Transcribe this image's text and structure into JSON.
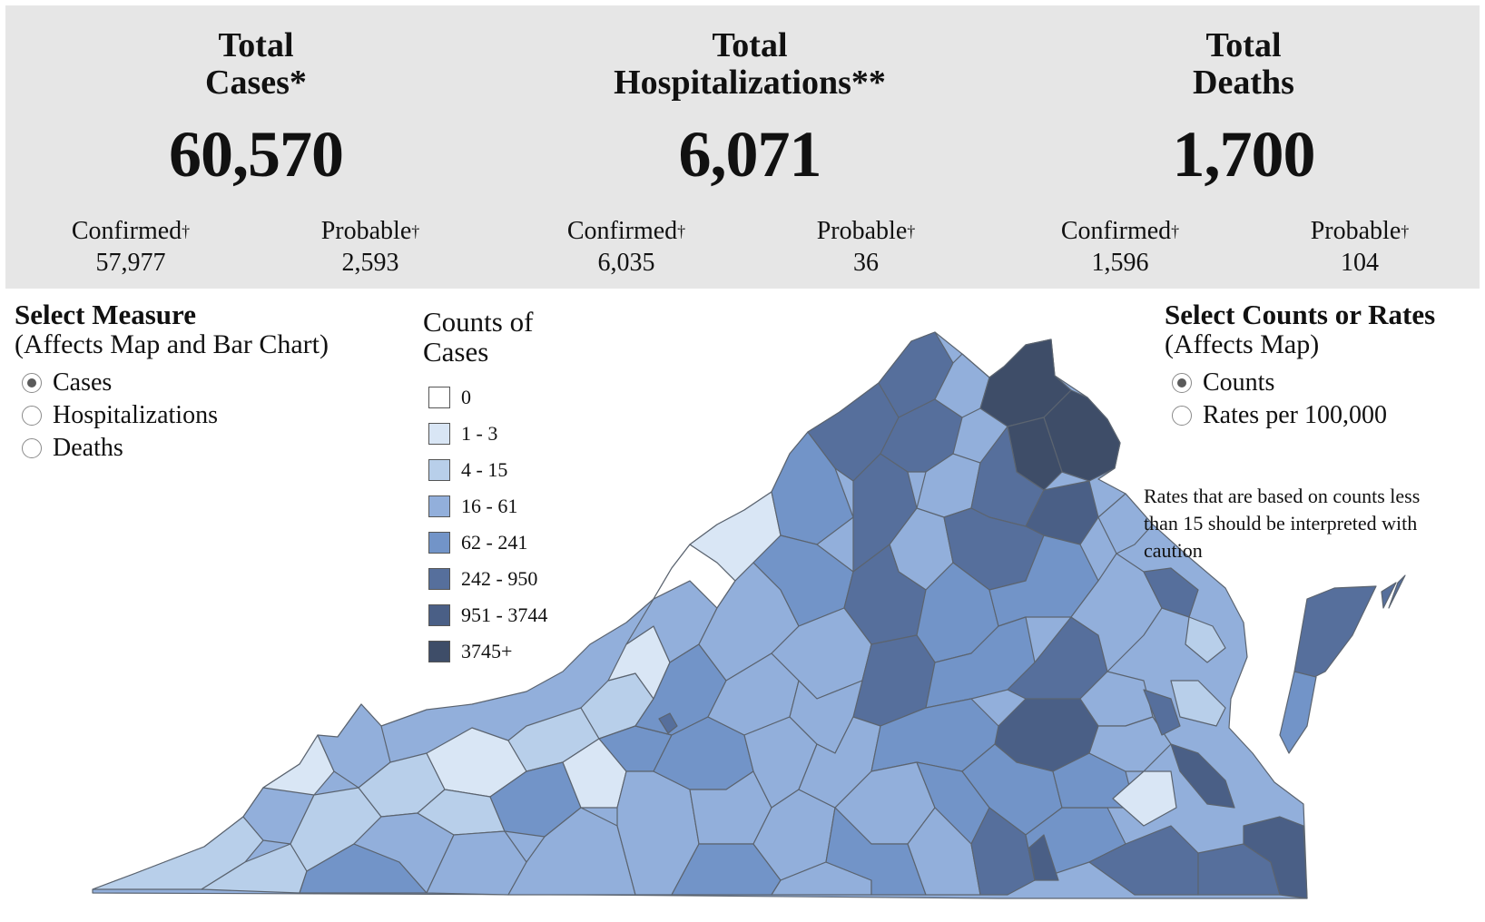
{
  "summary": {
    "cases": {
      "title_1": "Total",
      "title_2": "Cases*",
      "total": "60,570",
      "confirmed_label": "Confirmed",
      "confirmed": "57,977",
      "probable_label": "Probable",
      "probable": "2,593"
    },
    "hospitalizations": {
      "title_1": "Total",
      "title_2": "Hospitalizations**",
      "total": "6,071",
      "confirmed_label": "Confirmed",
      "confirmed": "6,035",
      "probable_label": "Probable",
      "probable": "36"
    },
    "deaths": {
      "title_1": "Total",
      "title_2": "Deaths",
      "total": "1,700",
      "confirmed_label": "Confirmed",
      "confirmed": "1,596",
      "probable_label": "Probable",
      "probable": "104"
    },
    "dagger": "†"
  },
  "measure": {
    "title": "Select Measure",
    "subtitle": "(Affects Map and Bar Chart)",
    "options": [
      {
        "label": "Cases",
        "selected": true
      },
      {
        "label": "Hospitalizations",
        "selected": false
      },
      {
        "label": "Deaths",
        "selected": false
      }
    ]
  },
  "counts_or_rates": {
    "title": "Select Counts or Rates",
    "subtitle": "(Affects Map)",
    "options": [
      {
        "label": "Counts",
        "selected": true
      },
      {
        "label": "Rates per 100,000",
        "selected": false
      }
    ]
  },
  "legend": {
    "title_1": "Counts of",
    "title_2": "Cases",
    "items": [
      {
        "label": "0",
        "color": "#ffffff"
      },
      {
        "label": "1 - 3",
        "color": "#d9e6f5"
      },
      {
        "label": "4 - 15",
        "color": "#b8cfea"
      },
      {
        "label": "16 - 61",
        "color": "#92afdb"
      },
      {
        "label": "62 - 241",
        "color": "#7294c8"
      },
      {
        "label": "242 - 950",
        "color": "#566f9c"
      },
      {
        "label": "951 - 3744",
        "color": "#4a5f86"
      },
      {
        "label": "3745+",
        "color": "#3e4d68"
      }
    ]
  },
  "note": "Rates that are based on counts less than 15 should be interpreted with caution",
  "map": {
    "region": "Virginia",
    "border_color": "#5b6470"
  }
}
